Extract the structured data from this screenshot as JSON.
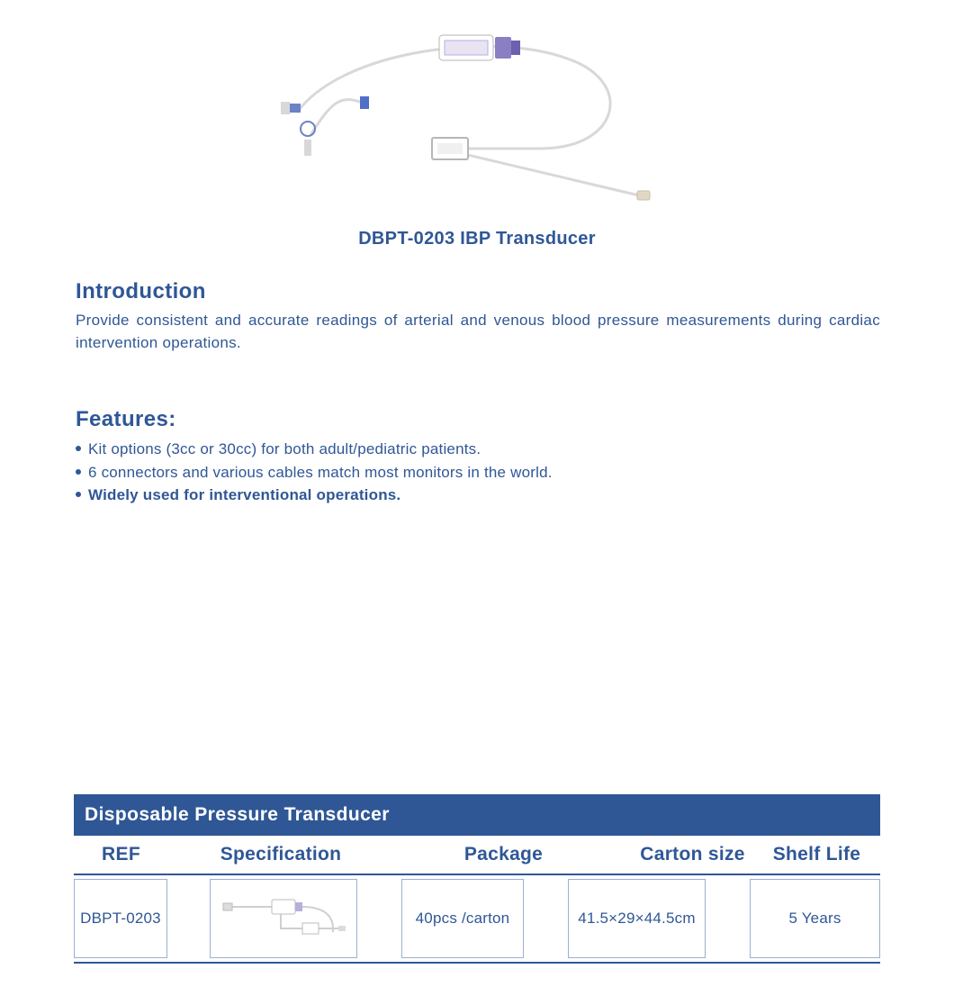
{
  "colors": {
    "text_primary": "#2f5796",
    "body_text": "#2f5796",
    "bullet": "#2f5796",
    "table_header_bg": "#2f5796",
    "table_rule": "#2f5796",
    "cell_border": "#9bb0cf",
    "svg_tube": "#d8d8d8",
    "svg_fitting": "#6b82c7",
    "svg_connector": "#bfbfbf",
    "svg_housing_fill": "#ffffff",
    "svg_housing_stroke": "#b6b6b6",
    "svg_purple": "#8b7fc4"
  },
  "product": {
    "caption": "DBPT-0203 IBP Transducer"
  },
  "introduction": {
    "heading": "Introduction",
    "text": "Provide consistent and accurate readings of arterial and venous blood pressure measurements during cardiac intervention operations."
  },
  "features": {
    "heading": "Features:",
    "items": [
      {
        "text": "Kit options (3cc or 30cc) for both adult/pediatric patients.",
        "bold": false
      },
      {
        "text": "6 connectors and various cables match most monitors in the world.",
        "bold": false
      },
      {
        "text": "Widely used for interventional operations.",
        "bold": true
      }
    ]
  },
  "table": {
    "title": "Disposable Pressure Transducer",
    "columns": [
      "REF",
      "Specification",
      "Package",
      "Carton  size",
      "Shelf Life"
    ],
    "row": {
      "ref": "DBPT-0203",
      "package": "40pcs /carton",
      "carton_size": "41.5×29×44.5cm",
      "shelf_life": "5 Years"
    }
  }
}
